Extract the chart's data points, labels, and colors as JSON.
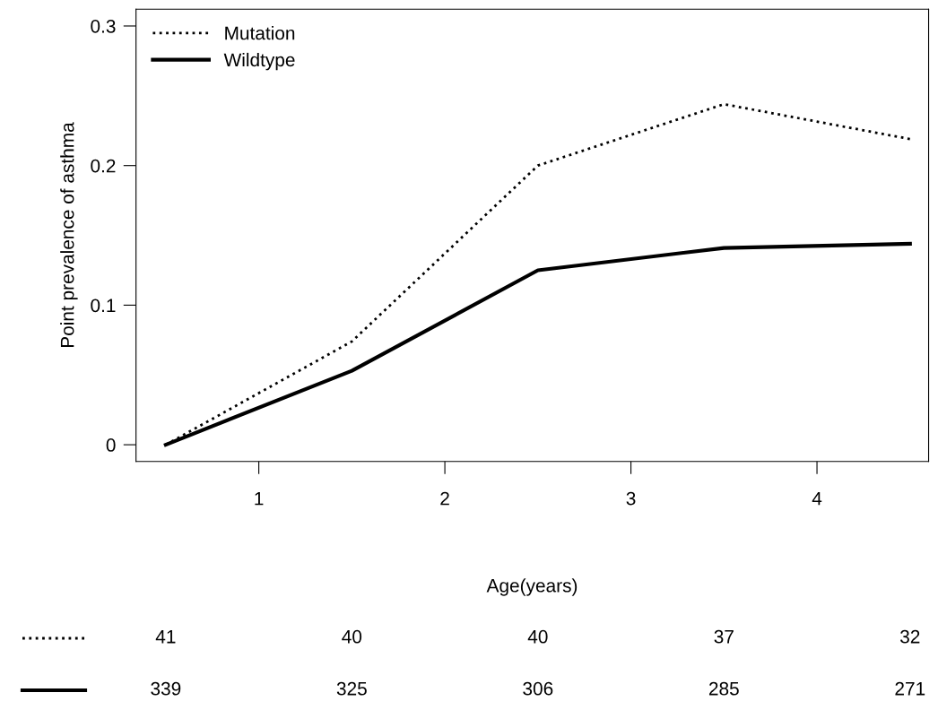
{
  "chart_data": {
    "type": "line",
    "xlabel": "Age(years)",
    "ylabel": "Point prevalence of asthma",
    "x": [
      0.5,
      1.5,
      2.5,
      3.5,
      4.5
    ],
    "series": [
      {
        "name": "Mutation",
        "color": "#000000",
        "line_style": "dotted",
        "values": [
          0,
          0.074,
          0.2,
          0.244,
          0.219
        ]
      },
      {
        "name": "Wildtype",
        "color": "#000000",
        "line_style": "solid",
        "values": [
          0,
          0.053,
          0.125,
          0.141,
          0.144
        ]
      }
    ],
    "xlim": [
      0.34,
      4.6
    ],
    "ylim": [
      -0.012,
      0.312
    ],
    "xticks": [
      1,
      2,
      3,
      4
    ],
    "yticks": [
      0,
      0.1,
      0.2,
      0.3
    ],
    "grid": false,
    "legend": "top left",
    "marker": "none",
    "annotations": [
      "41",
      "40",
      "40",
      "37",
      "32",
      "339",
      "325",
      "306",
      "285",
      "271"
    ]
  }
}
